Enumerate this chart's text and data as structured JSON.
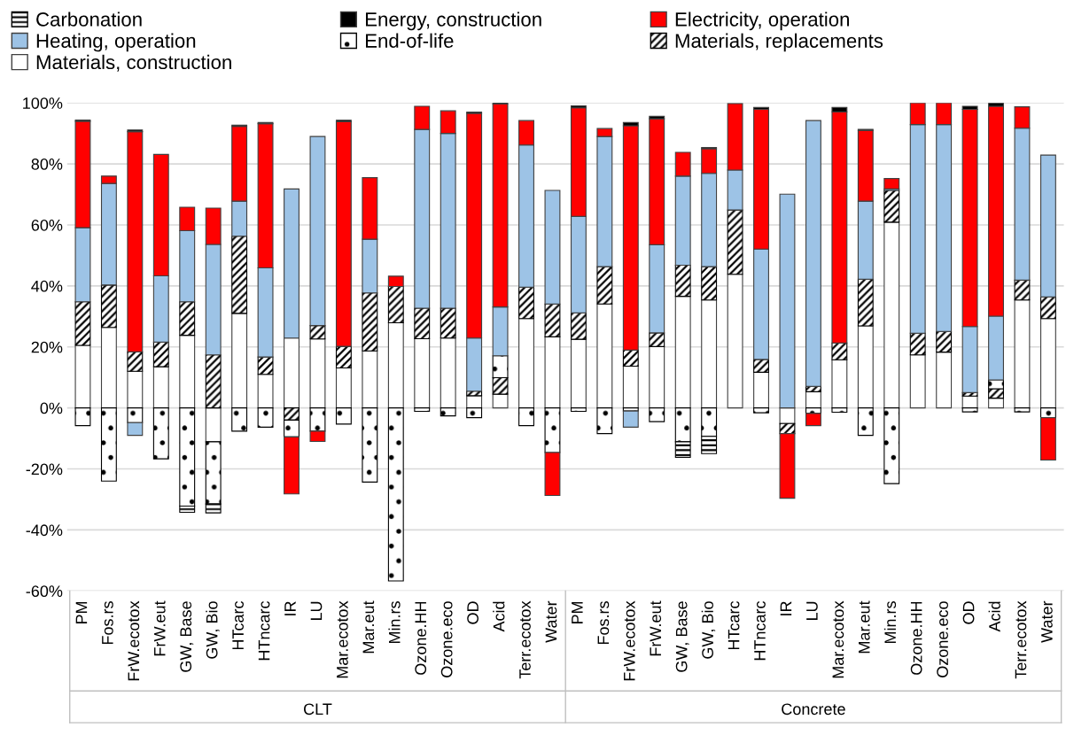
{
  "chart_data": {
    "type": "bar",
    "stacked": true,
    "categories": [
      "PM",
      "Fos.rs",
      "FrW.ecotox",
      "FrW.eut",
      "GW, Base",
      "GW, Bio",
      "HTcarc",
      "HTncarc",
      "IR",
      "LU",
      "Mar.ecotox",
      "Mar.eut",
      "Min.rs",
      "Ozone.HH",
      "Ozone.eco",
      "OD",
      "Acid",
      "Terr.ecotox",
      "Water",
      "PM",
      "Fos.rs",
      "FrW.ecotox",
      "FrW.eut",
      "GW, Base",
      "GW, Bio",
      "HTcarc",
      "HTncarc",
      "IR",
      "LU",
      "Mar.ecotox",
      "Mar.eut",
      "Min.rs",
      "Ozone.HH",
      "Ozone.eco",
      "OD",
      "Acid",
      "Terr.ecotox",
      "Water"
    ],
    "series": [
      {
        "name": "Materials, construction",
        "color": "#ffffff",
        "values": [
          20.5,
          26.4,
          12.0,
          13.5,
          23.8,
          -11.1,
          31.0,
          11.0,
          22.9,
          22.6,
          13.1,
          18.7,
          27.9,
          22.7,
          22.9,
          4.0,
          4.5,
          29.3,
          23.3,
          22.5,
          34.1,
          13.7,
          20.1,
          36.6,
          35.4,
          43.8,
          11.7,
          -5.1,
          5.3,
          15.8,
          26.9,
          60.9,
          17.4,
          18.3,
          3.9,
          3.2,
          35.4,
          29.3
        ]
      },
      {
        "name": "Materials, replacements",
        "color": "#000000",
        "values": [
          14.3,
          13.9,
          6.4,
          8.1,
          11.0,
          17.4,
          25.3,
          5.7,
          -4.0,
          4.4,
          7.1,
          19.0,
          11.9,
          10.0,
          9.8,
          1.5,
          5.4,
          10.3,
          10.8,
          8.7,
          12.2,
          5.3,
          4.5,
          10.2,
          10.9,
          21.1,
          4.2,
          -3.3,
          1.8,
          5.5,
          15.3,
          10.4,
          7.1,
          6.8,
          1.1,
          3.1,
          6.5,
          7.1
        ]
      },
      {
        "name": "End-of-life",
        "color": "#000000",
        "values": [
          -5.8,
          -24.0,
          -4.8,
          -16.7,
          -32.2,
          -20.4,
          -7.6,
          -6.3,
          -5.5,
          -7.6,
          -5.3,
          -24.3,
          -56.7,
          -1.1,
          -2.6,
          -3.2,
          7.2,
          -5.8,
          -14.6,
          -1.1,
          -8.4,
          -1.0,
          -4.5,
          -11.1,
          -9.3,
          null,
          -1.6,
          null,
          -1.8,
          -1.4,
          -9.0,
          -24.8,
          null,
          null,
          -1.3,
          2.9,
          -1.3,
          -3.2
        ]
      },
      {
        "name": "Heating, operation",
        "color": "#9dc3e6",
        "values": [
          24.3,
          33.3,
          -4.2,
          21.7,
          23.3,
          36.2,
          11.5,
          29.2,
          48.9,
          62.0,
          null,
          17.6,
          null,
          58.6,
          57.3,
          17.4,
          16.0,
          46.6,
          37.2,
          31.6,
          42.7,
          -5.3,
          28.9,
          29.2,
          30.6,
          13.1,
          36.2,
          70.1,
          87.1,
          null,
          25.6,
          0.5,
          68.4,
          67.8,
          21.7,
          20.9,
          49.8,
          46.5
        ]
      },
      {
        "name": "Electricity, operation",
        "color": "#ff0000",
        "values": [
          34.9,
          2.4,
          72.2,
          39.8,
          7.7,
          11.9,
          24.5,
          47.3,
          -18.7,
          -3.4,
          73.6,
          20.2,
          3.4,
          7.6,
          7.4,
          73.7,
          66.6,
          8.0,
          -14.1,
          35.6,
          2.6,
          73.5,
          41.3,
          7.8,
          8.1,
          21.8,
          45.8,
          -21.2,
          -4.0,
          75.8,
          23.2,
          3.4,
          7.1,
          7.1,
          71.2,
          68.8,
          7.0,
          -13.9
        ]
      },
      {
        "name": "Energy, construction",
        "color": "#000000",
        "values": [
          0.4,
          null,
          0.5,
          null,
          null,
          null,
          0.4,
          0.4,
          null,
          null,
          0.5,
          null,
          null,
          null,
          null,
          0.4,
          0.4,
          null,
          null,
          0.6,
          null,
          1.1,
          0.8,
          null,
          0.4,
          null,
          0.6,
          null,
          null,
          1.4,
          0.3,
          null,
          null,
          null,
          1.0,
          1.1,
          null,
          null
        ]
      },
      {
        "name": "Carbonation",
        "color": "#000000",
        "values": [
          null,
          null,
          null,
          null,
          -2.0,
          -2.9,
          null,
          null,
          null,
          null,
          null,
          null,
          null,
          null,
          null,
          null,
          null,
          null,
          null,
          null,
          null,
          null,
          null,
          -5.1,
          -5.7,
          null,
          null,
          null,
          null,
          null,
          null,
          null,
          null,
          null,
          null,
          null,
          null,
          null
        ]
      }
    ],
    "ylim": [
      -60,
      100
    ],
    "yticks": [
      {
        "value": -60,
        "label": "-60%"
      },
      {
        "value": -40,
        "label": "-40%"
      },
      {
        "value": -20,
        "label": "-20%"
      },
      {
        "value": 0,
        "label": "0%"
      },
      {
        "value": 20,
        "label": "20%"
      },
      {
        "value": 40,
        "label": "40%"
      },
      {
        "value": 60,
        "label": "60%"
      },
      {
        "value": 80,
        "label": "80%"
      },
      {
        "value": 100,
        "label": "100%"
      }
    ],
    "grid": "y",
    "legend": "top",
    "annotations": [
      "CLT",
      "Concrete"
    ]
  }
}
